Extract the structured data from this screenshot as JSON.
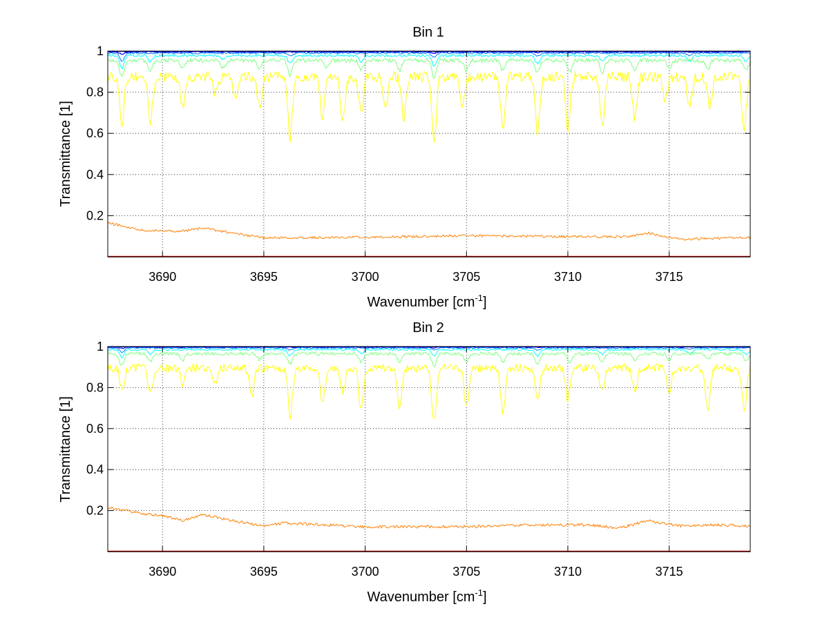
{
  "chart_data": [
    {
      "type": "line",
      "title": "Bin 1",
      "xlabel_base": "Wavenumber [cm",
      "xlabel_sup": "-1",
      "xlabel_close": "]",
      "ylabel": "Transmittance [1]",
      "xlim": [
        3687.3,
        3719.0
      ],
      "ylim": [
        0,
        1
      ],
      "grid": true,
      "xticks": [
        3690,
        3695,
        3700,
        3705,
        3710,
        3715
      ],
      "xtick_labels": [
        "3690",
        "3695",
        "3700",
        "3705",
        "3710",
        "3715"
      ],
      "yticks": [
        0.2,
        0.4,
        0.6,
        0.8,
        1
      ],
      "ytick_labels": [
        "0.2",
        "0.4",
        "0.6",
        "0.8",
        "1"
      ],
      "series": [
        {
          "color": "#00007f",
          "base": 0.998,
          "noise": 0.002,
          "dips": [],
          "dipScale": 0.0,
          "width": 1.4
        },
        {
          "color": "#0000ff",
          "base": 0.996,
          "noise": 0.003,
          "dips": [
            [
              3688.0,
              0.01
            ],
            [
              3695.4,
              0.005
            ],
            [
              3703.4,
              0.006
            ],
            [
              3708.5,
              0.005
            ]
          ],
          "dipScale": 1.0,
          "width": 1.2
        },
        {
          "color": "#007fff",
          "base": 0.99,
          "noise": 0.004,
          "dips": [
            [
              3688.0,
              0.04
            ],
            [
              3696.3,
              0.015
            ],
            [
              3703.4,
              0.02
            ],
            [
              3708.5,
              0.015
            ],
            [
              3716.0,
              0.01
            ]
          ],
          "dipScale": 1.0,
          "width": 1.0
        },
        {
          "color": "#00ffff",
          "base": 0.978,
          "noise": 0.006,
          "dips": [
            [
              3688.0,
              0.06
            ],
            [
              3689.4,
              0.03
            ],
            [
              3693.0,
              0.02
            ],
            [
              3696.3,
              0.04
            ],
            [
              3699.8,
              0.03
            ],
            [
              3703.4,
              0.05
            ],
            [
              3708.5,
              0.04
            ],
            [
              3711.7,
              0.03
            ],
            [
              3716.0,
              0.03
            ],
            [
              3718.8,
              0.03
            ]
          ],
          "dipScale": 1.0,
          "width": 1.0
        },
        {
          "color": "#7fff7f",
          "base": 0.955,
          "noise": 0.01,
          "dips": [
            [
              3688.0,
              0.08
            ],
            [
              3689.4,
              0.05
            ],
            [
              3691.0,
              0.04
            ],
            [
              3693.0,
              0.04
            ],
            [
              3694.8,
              0.04
            ],
            [
              3696.3,
              0.07
            ],
            [
              3698.1,
              0.04
            ],
            [
              3699.8,
              0.05
            ],
            [
              3701.7,
              0.05
            ],
            [
              3703.4,
              0.08
            ],
            [
              3705.0,
              0.05
            ],
            [
              3706.8,
              0.05
            ],
            [
              3708.5,
              0.06
            ],
            [
              3710.1,
              0.06
            ],
            [
              3711.7,
              0.06
            ],
            [
              3713.3,
              0.05
            ],
            [
              3715.0,
              0.04
            ],
            [
              3716.9,
              0.04
            ],
            [
              3718.8,
              0.05
            ]
          ],
          "dipScale": 1.0,
          "width": 1.0
        },
        {
          "color": "#ffff00",
          "base": 0.875,
          "noise": 0.025,
          "dips": [
            [
              3688.0,
              0.22
            ],
            [
              3689.4,
              0.22
            ],
            [
              3691.0,
              0.15
            ],
            [
              3692.6,
              0.08
            ],
            [
              3693.6,
              0.1
            ],
            [
              3694.8,
              0.15
            ],
            [
              3696.3,
              0.3
            ],
            [
              3697.9,
              0.2
            ],
            [
              3698.9,
              0.22
            ],
            [
              3699.8,
              0.18
            ],
            [
              3701.0,
              0.15
            ],
            [
              3701.9,
              0.2
            ],
            [
              3703.4,
              0.33
            ],
            [
              3704.8,
              0.15
            ],
            [
              3706.8,
              0.25
            ],
            [
              3708.5,
              0.27
            ],
            [
              3710.0,
              0.25
            ],
            [
              3711.7,
              0.25
            ],
            [
              3713.3,
              0.2
            ],
            [
              3714.8,
              0.12
            ],
            [
              3716.0,
              0.15
            ],
            [
              3717.0,
              0.15
            ],
            [
              3718.7,
              0.25
            ]
          ],
          "dipScale": 1.0,
          "width": 1.0
        },
        {
          "color": "#ff7f00",
          "base": 0.1,
          "noise": 0.006,
          "trend": [
            [
              3687.3,
              0.165
            ],
            [
              3689.0,
              0.13
            ],
            [
              3691.0,
              0.125
            ],
            [
              3692.0,
              0.14
            ],
            [
              3693.5,
              0.115
            ],
            [
              3695.0,
              0.092
            ],
            [
              3700.0,
              0.095
            ],
            [
              3705.0,
              0.103
            ],
            [
              3710.0,
              0.098
            ],
            [
              3713.0,
              0.098
            ],
            [
              3714.0,
              0.115
            ],
            [
              3715.5,
              0.085
            ],
            [
              3719.0,
              0.095
            ]
          ],
          "dips": [],
          "dipScale": 0.0,
          "width": 1.0
        },
        {
          "color": "#ff0000",
          "base": 0.002,
          "noise": 0.0,
          "dips": [],
          "dipScale": 0.0,
          "width": 1.2
        },
        {
          "color": "#7f0000",
          "base": 0.0,
          "noise": 0.0,
          "dips": [],
          "dipScale": 0.0,
          "width": 1.4
        }
      ]
    },
    {
      "type": "line",
      "title": "Bin 2",
      "xlabel_base": "Wavenumber [cm",
      "xlabel_sup": "-1",
      "xlabel_close": "]",
      "ylabel": "Transmittance [1]",
      "xlim": [
        3687.3,
        3719.0
      ],
      "ylim": [
        0,
        1
      ],
      "grid": true,
      "xticks": [
        3690,
        3695,
        3700,
        3705,
        3710,
        3715
      ],
      "xtick_labels": [
        "3690",
        "3695",
        "3700",
        "3705",
        "3710",
        "3715"
      ],
      "yticks": [
        0.2,
        0.4,
        0.6,
        0.8,
        1
      ],
      "ytick_labels": [
        "0.2",
        "0.4",
        "0.6",
        "0.8",
        "1"
      ],
      "series": [
        {
          "color": "#00007f",
          "base": 0.999,
          "noise": 0.001,
          "dips": [],
          "dipScale": 0.0,
          "width": 1.4
        },
        {
          "color": "#0000ff",
          "base": 0.997,
          "noise": 0.002,
          "dips": [
            [
              3688.0,
              0.006
            ],
            [
              3703.4,
              0.004
            ]
          ],
          "dipScale": 1.0,
          "width": 1.2
        },
        {
          "color": "#007fff",
          "base": 0.993,
          "noise": 0.003,
          "dips": [
            [
              3688.0,
              0.02
            ],
            [
              3696.3,
              0.01
            ],
            [
              3703.4,
              0.012
            ],
            [
              3708.5,
              0.01
            ],
            [
              3716.0,
              0.008
            ]
          ],
          "dipScale": 1.0,
          "width": 1.0
        },
        {
          "color": "#00ffff",
          "base": 0.985,
          "noise": 0.005,
          "dips": [
            [
              3688.0,
              0.04
            ],
            [
              3689.4,
              0.02
            ],
            [
              3696.3,
              0.03
            ],
            [
              3699.8,
              0.02
            ],
            [
              3703.4,
              0.03
            ],
            [
              3708.5,
              0.03
            ],
            [
              3711.7,
              0.02
            ],
            [
              3716.0,
              0.02
            ],
            [
              3718.8,
              0.025
            ]
          ],
          "dipScale": 1.0,
          "width": 1.0
        },
        {
          "color": "#7fff7f",
          "base": 0.965,
          "noise": 0.008,
          "dips": [
            [
              3688.0,
              0.06
            ],
            [
              3689.4,
              0.04
            ],
            [
              3691.0,
              0.03
            ],
            [
              3694.8,
              0.03
            ],
            [
              3696.3,
              0.05
            ],
            [
              3699.8,
              0.04
            ],
            [
              3701.7,
              0.04
            ],
            [
              3703.4,
              0.06
            ],
            [
              3705.0,
              0.04
            ],
            [
              3706.8,
              0.04
            ],
            [
              3708.5,
              0.05
            ],
            [
              3710.1,
              0.04
            ],
            [
              3711.7,
              0.04
            ],
            [
              3713.3,
              0.03
            ],
            [
              3715.0,
              0.03
            ],
            [
              3716.9,
              0.03
            ],
            [
              3718.8,
              0.04
            ]
          ],
          "dipScale": 1.0,
          "width": 1.0
        },
        {
          "color": "#ffff00",
          "base": 0.895,
          "noise": 0.02,
          "dips": [
            [
              3688.0,
              0.1
            ],
            [
              3689.4,
              0.13
            ],
            [
              3691.0,
              0.08
            ],
            [
              3692.6,
              0.07
            ],
            [
              3694.4,
              0.14
            ],
            [
              3696.3,
              0.23
            ],
            [
              3697.9,
              0.17
            ],
            [
              3698.9,
              0.12
            ],
            [
              3699.8,
              0.2
            ],
            [
              3701.7,
              0.2
            ],
            [
              3703.4,
              0.26
            ],
            [
              3705.0,
              0.2
            ],
            [
              3706.8,
              0.22
            ],
            [
              3708.5,
              0.17
            ],
            [
              3710.0,
              0.15
            ],
            [
              3711.7,
              0.12
            ],
            [
              3713.3,
              0.12
            ],
            [
              3715.0,
              0.12
            ],
            [
              3716.9,
              0.2
            ],
            [
              3718.7,
              0.2
            ]
          ],
          "dipScale": 1.0,
          "width": 1.0
        },
        {
          "color": "#ff7f00",
          "base": 0.14,
          "noise": 0.007,
          "trend": [
            [
              3687.3,
              0.215
            ],
            [
              3689.0,
              0.185
            ],
            [
              3690.0,
              0.175
            ],
            [
              3691.0,
              0.15
            ],
            [
              3692.0,
              0.18
            ],
            [
              3693.5,
              0.15
            ],
            [
              3695.0,
              0.125
            ],
            [
              3696.0,
              0.14
            ],
            [
              3700.0,
              0.12
            ],
            [
              3705.0,
              0.122
            ],
            [
              3708.0,
              0.13
            ],
            [
              3711.0,
              0.13
            ],
            [
              3712.5,
              0.115
            ],
            [
              3714.0,
              0.15
            ],
            [
              3715.5,
              0.125
            ],
            [
              3717.0,
              0.13
            ],
            [
              3719.0,
              0.125
            ]
          ],
          "dips": [],
          "dipScale": 0.0,
          "width": 1.0
        },
        {
          "color": "#ff0000",
          "base": 0.002,
          "noise": 0.0,
          "dips": [],
          "dipScale": 0.0,
          "width": 1.2
        },
        {
          "color": "#7f0000",
          "base": 0.0,
          "noise": 0.0,
          "dips": [],
          "dipScale": 0.0,
          "width": 1.4
        }
      ]
    }
  ]
}
